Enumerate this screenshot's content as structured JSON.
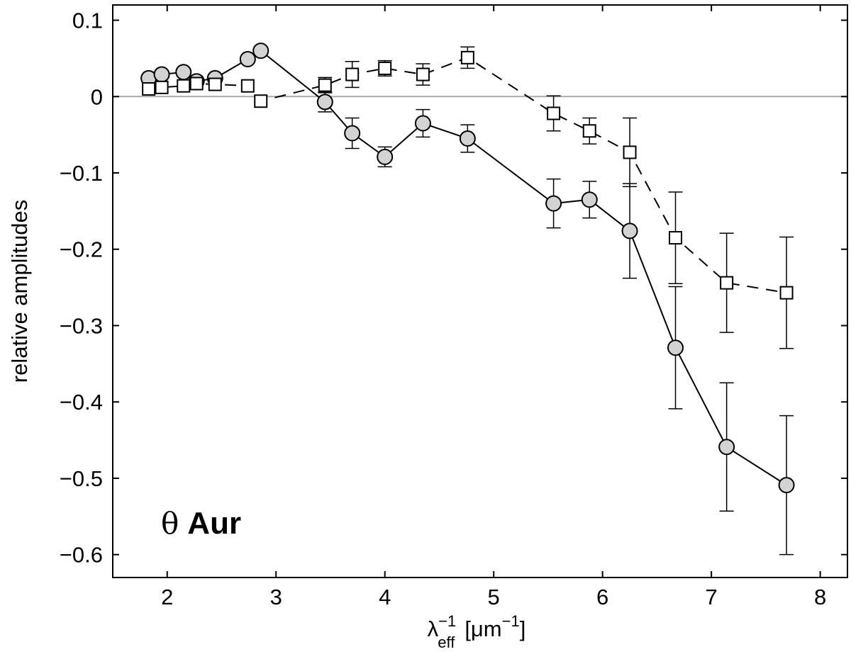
{
  "chart_data": {
    "type": "scatter",
    "xlabel": {
      "main": "λ",
      "sup": "−1",
      "sub": "eff",
      "unit_open": "[μm",
      "unit_sup": "−1",
      "unit_close": "]"
    },
    "ylabel": "relative amplitudes",
    "annotation": {
      "symbol": "θ",
      "text": "Aur"
    },
    "xlim": [
      1.5,
      8.25
    ],
    "ylim": [
      -0.63,
      0.12
    ],
    "xticks": [
      2,
      3,
      4,
      5,
      6,
      7,
      8
    ],
    "yticks": [
      0.1,
      0,
      -0.1,
      -0.2,
      -0.3,
      -0.4,
      -0.5,
      -0.6
    ],
    "ytick_labels": [
      "0.1",
      "0",
      "−0.1",
      "−0.2",
      "−0.3",
      "−0.4",
      "−0.5",
      "−0.6"
    ],
    "grid": false,
    "reference_line": {
      "y": 0,
      "color": "#aaaaaa"
    },
    "series": [
      {
        "marker": "circle",
        "line_style": "solid",
        "marker_fill": "#d3d3d3",
        "points": [
          {
            "x": 1.83,
            "y": 0.024
          },
          {
            "x": 1.95,
            "y": 0.029
          },
          {
            "x": 2.15,
            "y": 0.032
          },
          {
            "x": 2.27,
            "y": 0.02
          },
          {
            "x": 2.44,
            "y": 0.024
          },
          {
            "x": 2.74,
            "y": 0.049
          },
          {
            "x": 2.86,
            "y": 0.06
          },
          {
            "x": 3.45,
            "y": -0.007,
            "err": 0.013
          },
          {
            "x": 3.7,
            "y": -0.048,
            "err": 0.02
          },
          {
            "x": 4.0,
            "y": -0.079,
            "err": 0.013
          },
          {
            "x": 4.35,
            "y": -0.035,
            "err": 0.018
          },
          {
            "x": 4.76,
            "y": -0.055,
            "err": 0.018
          },
          {
            "x": 5.55,
            "y": -0.14,
            "err": 0.032
          },
          {
            "x": 5.88,
            "y": -0.135,
            "err": 0.024
          },
          {
            "x": 6.25,
            "y": -0.176,
            "err": 0.062
          },
          {
            "x": 6.67,
            "y": -0.329,
            "err": 0.08
          },
          {
            "x": 7.14,
            "y": -0.459,
            "err": 0.084
          },
          {
            "x": 7.69,
            "y": -0.509,
            "err": 0.091
          }
        ]
      },
      {
        "marker": "square",
        "line_style": "dashed",
        "marker_fill": "#ffffff",
        "points": [
          {
            "x": 1.83,
            "y": 0.01
          },
          {
            "x": 1.95,
            "y": 0.012
          },
          {
            "x": 2.15,
            "y": 0.014
          },
          {
            "x": 2.27,
            "y": 0.017
          },
          {
            "x": 2.44,
            "y": 0.016
          },
          {
            "x": 2.74,
            "y": 0.014
          },
          {
            "x": 2.86,
            "y": -0.006
          },
          {
            "x": 3.45,
            "y": 0.015,
            "err": 0.01
          },
          {
            "x": 3.7,
            "y": 0.029,
            "err": 0.017
          },
          {
            "x": 4.0,
            "y": 0.037,
            "err": 0.01
          },
          {
            "x": 4.35,
            "y": 0.029,
            "err": 0.014
          },
          {
            "x": 4.76,
            "y": 0.051,
            "err": 0.014
          },
          {
            "x": 5.55,
            "y": -0.022,
            "err": 0.023
          },
          {
            "x": 5.88,
            "y": -0.045,
            "err": 0.017
          },
          {
            "x": 6.25,
            "y": -0.073,
            "err": 0.045
          },
          {
            "x": 6.67,
            "y": -0.185,
            "err": 0.06
          },
          {
            "x": 7.14,
            "y": -0.244,
            "err": 0.065
          },
          {
            "x": 7.69,
            "y": -0.257,
            "err": 0.073
          }
        ]
      }
    ]
  }
}
